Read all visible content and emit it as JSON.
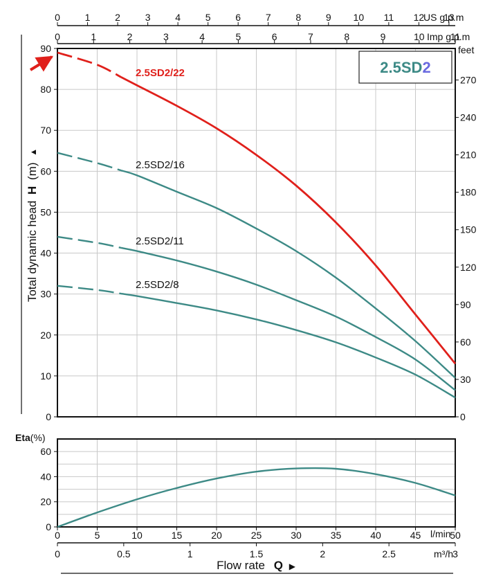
{
  "chart_data": [
    {
      "type": "line",
      "title": "2.5SD2",
      "title_parts": [
        "2.5SD",
        "2"
      ],
      "ylabel": "Total dynamic head",
      "ylabel_symbol": "H",
      "ylabel_unit": "(m)",
      "ylim": [
        0,
        90
      ],
      "y_ticks": [
        0,
        10,
        20,
        30,
        40,
        50,
        60,
        70,
        80,
        90
      ],
      "y2_label": "feet",
      "y2_ticks": [
        0,
        30,
        60,
        90,
        120,
        150,
        180,
        210,
        240,
        270
      ],
      "x_lmin_ticks": [
        0,
        5,
        10,
        15,
        20,
        25,
        30,
        35,
        40,
        45,
        50
      ],
      "x_lmin_unit": "l/min",
      "x_m3h_ticks": [
        "0",
        "0.5",
        "1",
        "1.5",
        "2",
        "2.5",
        "3"
      ],
      "x_m3h_unit": "m³/h",
      "x_usgpm_ticks": [
        0,
        1,
        2,
        3,
        4,
        5,
        6,
        7,
        8,
        9,
        10,
        11,
        12,
        13
      ],
      "x_usgpm_unit": "US g.p.m",
      "x_impgpm_ticks": [
        0,
        1,
        2,
        3,
        4,
        5,
        6,
        7,
        8,
        9,
        10,
        11
      ],
      "x_impgpm_unit": "Imp g.p.m",
      "xlabel": "Flow rate",
      "xlabel_symbol": "Q",
      "xlim": [
        0,
        50
      ],
      "x": [
        0,
        5,
        10,
        15,
        20,
        25,
        30,
        35,
        40,
        45,
        50
      ],
      "dashed_until": 8,
      "series": [
        {
          "name": "2.5SD2/22",
          "color": "#e0201b",
          "values": [
            89,
            86,
            81,
            76,
            70.5,
            64,
            56.5,
            47.5,
            37,
            25,
            13
          ]
        },
        {
          "name": "2.5SD2/16",
          "color": "#3d8a86",
          "values": [
            64.5,
            62,
            59,
            55,
            51,
            46,
            40.5,
            34,
            26.5,
            18.5,
            9.5
          ]
        },
        {
          "name": "2.5SD2/11",
          "color": "#3d8a86",
          "values": [
            44,
            42.5,
            40.5,
            38.2,
            35.5,
            32.3,
            28.5,
            24.5,
            19.5,
            14,
            6.5
          ]
        },
        {
          "name": "2.5SD2/8",
          "color": "#3d8a86",
          "values": [
            32,
            31,
            29.5,
            27.8,
            26,
            23.8,
            21.2,
            18.2,
            14.5,
            10.3,
            4.7
          ]
        }
      ]
    },
    {
      "type": "line",
      "ylabel": "Eta",
      "ylabel_unit": "(%)",
      "ylim": [
        0,
        70
      ],
      "y_ticks": [
        0,
        20,
        40,
        60
      ],
      "xlim": [
        0,
        50
      ],
      "x": [
        0,
        5,
        10,
        15,
        20,
        25,
        30,
        35,
        40,
        45,
        50
      ],
      "series": [
        {
          "color": "#3d8a86",
          "values": [
            0,
            11.5,
            22,
            31,
            38.5,
            44,
            46.5,
            46.3,
            42,
            35,
            25
          ]
        }
      ]
    }
  ]
}
